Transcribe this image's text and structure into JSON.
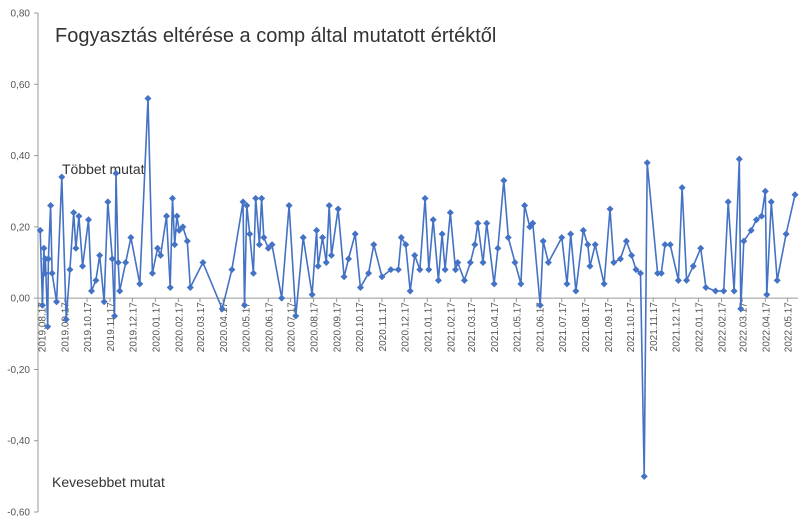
{
  "chart_data": {
    "type": "line",
    "title": "Fogyasztás eltérése a comp által mutatott értéktől",
    "annotations": [
      "Többet mutat",
      "Kevesebbet mutat"
    ],
    "color": "#4472c4",
    "marker": "diamond",
    "grid": false,
    "x": [
      "2019.08.15",
      "2019.08.18",
      "2019.08.20",
      "2019.08.21",
      "2019.08.22",
      "2019.08.25",
      "2019.08.26",
      "2019.08.29",
      "2019.08.31",
      "2019.09.06",
      "2019.09.13",
      "2019.09.19",
      "2019.09.24",
      "2019.09.29",
      "2019.10.02",
      "2019.10.06",
      "2019.10.11",
      "2019.10.19",
      "2019.10.23",
      "2019.10.29",
      "2019.11.03",
      "2019.11.09",
      "2019.11.14",
      "2019.11.20",
      "2019.11.23",
      "2019.11.25",
      "2019.11.28",
      "2019.11.30",
      "2019.12.08",
      "2019.12.15",
      "2019.12.27",
      "2020.01.07",
      "2020.01.13",
      "2020.01.20",
      "2020.01.24",
      "2020.02.01",
      "2020.02.06",
      "2020.02.09",
      "2020.02.12",
      "2020.02.15",
      "2020.02.18",
      "2020.02.23",
      "2020.02.29",
      "2020.03.04",
      "2020.03.21",
      "2020.04.16",
      "2020.04.29",
      "2020.05.14",
      "2020.05.16",
      "2020.05.19",
      "2020.05.23",
      "2020.05.28",
      "2020.05.31",
      "2020.06.05",
      "2020.06.08",
      "2020.06.11",
      "2020.06.17",
      "2020.06.22",
      "2020.07.05",
      "2020.07.15",
      "2020.07.24",
      "2020.08.03",
      "2020.08.15",
      "2020.08.21",
      "2020.08.23",
      "2020.08.29",
      "2020.09.03",
      "2020.09.07",
      "2020.09.10",
      "2020.09.19",
      "2020.09.27",
      "2020.10.03",
      "2020.10.12",
      "2020.10.19",
      "2020.10.30",
      "2020.11.06",
      "2020.11.17",
      "2020.11.29",
      "2020.12.09",
      "2020.12.13",
      "2020.12.19",
      "2020.12.25",
      "2020.12.31",
      "2021.01.07",
      "2021.01.14",
      "2021.01.19",
      "2021.01.25",
      "2021.02.01",
      "2021.02.06",
      "2021.02.10",
      "2021.02.17",
      "2021.02.24",
      "2021.02.27",
      "2021.03.08",
      "2021.03.16",
      "2021.03.22",
      "2021.03.26",
      "2021.04.02",
      "2021.04.07",
      "2021.04.17",
      "2021.04.22",
      "2021.04.30",
      "2021.05.06",
      "2021.05.15",
      "2021.05.23",
      "2021.05.28",
      "2021.06.04",
      "2021.06.08",
      "2021.06.18",
      "2021.06.22",
      "2021.06.29",
      "2021.07.17",
      "2021.07.24",
      "2021.07.29",
      "2021.08.05",
      "2021.08.15",
      "2021.08.21",
      "2021.08.24",
      "2021.08.31",
      "2021.09.12",
      "2021.09.20",
      "2021.09.25",
      "2021.10.04",
      "2021.10.12",
      "2021.10.19",
      "2021.10.25",
      "2021.10.31",
      "2021.11.05",
      "2021.11.09",
      "2021.11.23",
      "2021.11.28",
      "2021.12.03",
      "2021.12.10",
      "2021.12.21",
      "2021.12.26",
      "2022.01.01",
      "2022.01.10",
      "2022.01.20",
      "2022.01.27",
      "2022.02.09",
      "2022.02.20",
      "2022.02.26",
      "2022.03.06",
      "2022.03.13",
      "2022.03.15",
      "2022.03.19",
      "2022.03.29",
      "2022.04.05",
      "2022.04.12",
      "2022.04.17",
      "2022.04.19",
      "2022.04.25",
      "2022.05.03",
      "2022.05.15",
      "2022.05.27"
    ],
    "values": [
      0.19,
      -0.02,
      0.14,
      0.07,
      0.11,
      -0.08,
      0.11,
      0.26,
      0.07,
      -0.01,
      0.34,
      -0.06,
      0.08,
      0.24,
      0.14,
      0.23,
      0.09,
      0.22,
      0.02,
      0.05,
      0.12,
      -0.01,
      0.27,
      0.11,
      -0.05,
      0.35,
      0.1,
      0.02,
      0.1,
      0.17,
      0.04,
      0.56,
      0.07,
      0.14,
      0.12,
      0.23,
      0.03,
      0.28,
      0.15,
      0.23,
      0.19,
      0.2,
      0.16,
      0.03,
      0.1,
      -0.03,
      0.08,
      0.27,
      -0.02,
      0.26,
      0.18,
      0.07,
      0.28,
      0.15,
      0.28,
      0.17,
      0.14,
      0.15,
      0.0,
      0.26,
      -0.05,
      0.17,
      0.01,
      0.19,
      0.09,
      0.17,
      0.1,
      0.26,
      0.12,
      0.25,
      0.06,
      0.11,
      0.18,
      0.03,
      0.07,
      0.15,
      0.06,
      0.08,
      0.08,
      0.17,
      0.15,
      0.02,
      0.12,
      0.08,
      0.28,
      0.08,
      0.22,
      0.05,
      0.18,
      0.08,
      0.24,
      0.08,
      0.1,
      0.05,
      0.1,
      0.15,
      0.21,
      0.1,
      0.21,
      0.04,
      0.14,
      0.33,
      0.17,
      0.1,
      0.04,
      0.26,
      0.2,
      0.21,
      -0.02,
      0.16,
      0.1,
      0.17,
      0.04,
      0.18,
      0.02,
      0.19,
      0.15,
      0.09,
      0.15,
      0.04,
      0.25,
      0.1,
      0.11,
      0.16,
      0.12,
      0.08,
      0.07,
      -0.5,
      0.38,
      0.07,
      0.07,
      0.15,
      0.15,
      0.05,
      0.31,
      0.05,
      0.09,
      0.14,
      0.03,
      0.02,
      0.02,
      0.27,
      0.02,
      0.39,
      -0.03,
      0.16,
      0.19,
      0.22,
      0.23,
      0.3,
      0.01,
      0.27,
      0.05,
      0.18,
      0.29
    ],
    "xlim": [
      "2019.08.12",
      "2022.05.31"
    ],
    "xticks": [
      "2019.08.17",
      "2019.09.17",
      "2019.10.17",
      "2019.11.17",
      "2019.12.17",
      "2020.01.17",
      "2020.02.17",
      "2020.03.17",
      "2020.04.17",
      "2020.05.17",
      "2020.06.17",
      "2020.07.17",
      "2020.08.17",
      "2020.09.17",
      "2020.10.17",
      "2020.11.17",
      "2020.12.17",
      "2021.01.17",
      "2021.02.17",
      "2021.03.17",
      "2021.04.17",
      "2021.05.17",
      "2021.06.17",
      "2021.07.17",
      "2021.08.17",
      "2021.09.17",
      "2021.10.17",
      "2021.11.17",
      "2021.12.17",
      "2022.01.17",
      "2022.02.17",
      "2022.03.17",
      "2022.04.17",
      "2022.05.17"
    ],
    "ylim": [
      -0.6,
      0.8
    ],
    "yticks": [
      {
        "value": 0.8,
        "label": "0,80"
      },
      {
        "value": 0.6,
        "label": "0,60"
      },
      {
        "value": 0.4,
        "label": "0,40"
      },
      {
        "value": 0.2,
        "label": "0,20"
      },
      {
        "value": 0,
        "label": "0,00"
      },
      {
        "value": -0.2,
        "label": "-0,20"
      },
      {
        "value": -0.4,
        "label": "-0,40"
      },
      {
        "value": -0.6,
        "label": "-0,60"
      }
    ]
  }
}
